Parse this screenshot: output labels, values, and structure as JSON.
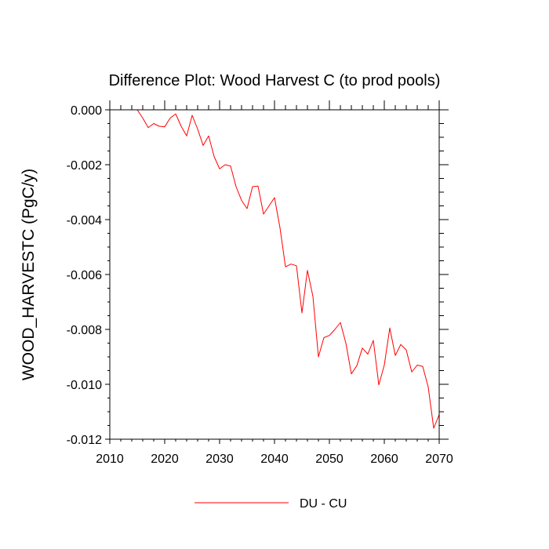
{
  "chart_data": {
    "type": "line",
    "title": "Difference Plot: Wood Harvest C (to prod pools)",
    "xlabel": "",
    "ylabel": "WOOD_HARVESTC  (PgC/y)",
    "xlim": [
      2010,
      2070
    ],
    "ylim": [
      -0.012,
      0.0
    ],
    "x_ticks": [
      2010,
      2020,
      2030,
      2040,
      2050,
      2060,
      2070
    ],
    "x_tick_labels": [
      "2010",
      "2020",
      "2030",
      "2040",
      "2050",
      "2060",
      "2070"
    ],
    "y_ticks": [
      0.0,
      -0.002,
      -0.004,
      -0.006,
      -0.008,
      -0.01,
      -0.012
    ],
    "y_tick_labels": [
      "0.000",
      "-0.002",
      "-0.004",
      "-0.006",
      "-0.008",
      "-0.010",
      "-0.012"
    ],
    "grid": false,
    "legend_position": "bottom-center",
    "series": [
      {
        "name": "DU - CU",
        "color": "#ff0000",
        "x": [
          2015,
          2016,
          2017,
          2018,
          2019,
          2020,
          2021,
          2022,
          2023,
          2024,
          2025,
          2026,
          2027,
          2028,
          2029,
          2030,
          2031,
          2032,
          2033,
          2034,
          2035,
          2036,
          2037,
          2038,
          2039,
          2040,
          2041,
          2042,
          2043,
          2044,
          2045,
          2046,
          2047,
          2048,
          2049,
          2050,
          2051,
          2052,
          2053,
          2054,
          2055,
          2056,
          2057,
          2058,
          2059,
          2060,
          2061,
          2062,
          2063,
          2064,
          2065,
          2066,
          2067,
          2068,
          2069,
          2070
        ],
        "y": [
          0.0,
          -0.0003,
          -0.00065,
          -0.0005,
          -0.0006,
          -0.00062,
          -0.0003,
          -0.00015,
          -0.0006,
          -0.00095,
          -0.0002,
          -0.0007,
          -0.0013,
          -0.00095,
          -0.0017,
          -0.00215,
          -0.002,
          -0.00205,
          -0.0028,
          -0.0033,
          -0.0036,
          -0.0028,
          -0.00278,
          -0.0038,
          -0.0035,
          -0.0032,
          -0.0043,
          -0.00572,
          -0.00562,
          -0.00568,
          -0.0074,
          -0.00585,
          -0.0068,
          -0.009,
          -0.0083,
          -0.00822,
          -0.008,
          -0.00775,
          -0.0085,
          -0.00962,
          -0.00932,
          -0.00868,
          -0.0089,
          -0.0084,
          -0.01002,
          -0.0093,
          -0.00795,
          -0.00895,
          -0.00855,
          -0.00875,
          -0.00955,
          -0.0093,
          -0.00935,
          -0.0101,
          -0.0116,
          -0.0111
        ]
      }
    ]
  }
}
